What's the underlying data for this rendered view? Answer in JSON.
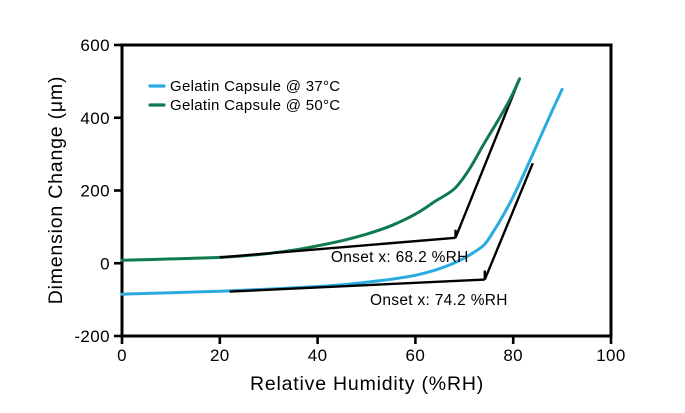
{
  "figure": {
    "background": "#ffffff",
    "text_color": "#000000"
  },
  "legend": {
    "items": [
      {
        "label": "Gelatin Capsule @ 37°C",
        "color": "#29abe2"
      },
      {
        "label": "Gelatin Capsule @ 50°C",
        "color": "#0f7a4d"
      }
    ]
  },
  "chart_data": {
    "type": "line",
    "title": "",
    "xlabel": "Relative Humidity (%RH)",
    "ylabel": "Dimension Change (μm)",
    "grid": false,
    "legend_position": "top-left-inside",
    "x_axis": {
      "min": 0,
      "max": 100,
      "ticks": [
        0,
        20,
        40,
        60,
        80,
        100
      ]
    },
    "y_axis": {
      "min": -200,
      "max": 600,
      "ticks": [
        -200,
        0,
        200,
        400,
        600
      ]
    },
    "series": [
      {
        "name": "Gelatin Capsule @ 37°C",
        "color": "#29abe2",
        "points": [
          [
            0,
            -85
          ],
          [
            10,
            -81
          ],
          [
            20,
            -77
          ],
          [
            30,
            -71
          ],
          [
            40,
            -64
          ],
          [
            45,
            -59
          ],
          [
            50,
            -52
          ],
          [
            55,
            -44
          ],
          [
            60,
            -33
          ],
          [
            64,
            -19
          ],
          [
            68,
            1
          ],
          [
            71,
            22
          ],
          [
            74,
            50
          ],
          [
            76,
            88
          ],
          [
            78,
            133
          ],
          [
            80,
            183
          ],
          [
            82,
            240
          ],
          [
            84,
            300
          ],
          [
            86,
            360
          ],
          [
            88,
            420
          ],
          [
            90,
            478
          ]
        ]
      },
      {
        "name": "Gelatin Capsule @ 50°C",
        "color": "#0f7a4d",
        "points": [
          [
            0,
            8
          ],
          [
            10,
            12
          ],
          [
            20,
            16
          ],
          [
            28,
            24
          ],
          [
            35,
            36
          ],
          [
            40,
            48
          ],
          [
            45,
            62
          ],
          [
            50,
            80
          ],
          [
            55,
            103
          ],
          [
            60,
            135
          ],
          [
            64,
            170
          ],
          [
            68,
            205
          ],
          [
            71,
            258
          ],
          [
            74,
            328
          ],
          [
            77,
            395
          ],
          [
            79,
            442
          ],
          [
            80.3,
            477
          ],
          [
            81.3,
            507
          ]
        ]
      }
    ],
    "onset_constructions": [
      {
        "series": "Gelatin Capsule @ 50°C",
        "onset_x_percent_rh": 68.2,
        "label": "Onset x: 68.2 %RH",
        "label_color": "#0f7a4d",
        "label_anchor": [
          56.8,
          3
        ],
        "baseline": [
          [
            20,
            16
          ],
          [
            68.2,
            70
          ]
        ],
        "tangent": [
          [
            68.2,
            70
          ],
          [
            81.3,
            507
          ]
        ],
        "marker": [
          [
            68.2,
            70
          ],
          [
            68.2,
            92
          ]
        ]
      },
      {
        "series": "Gelatin Capsule @ 37°C",
        "onset_x_percent_rh": 74.2,
        "label": "Onset x: 74.2 %RH",
        "label_color": "#29abe2",
        "label_anchor": [
          64.8,
          -115
        ],
        "baseline": [
          [
            22,
            -78
          ],
          [
            74.2,
            -45
          ]
        ],
        "tangent": [
          [
            74.2,
            -45
          ],
          [
            84,
            275
          ]
        ],
        "marker": [
          [
            74.2,
            -45
          ],
          [
            74.2,
            -20
          ]
        ]
      }
    ]
  }
}
